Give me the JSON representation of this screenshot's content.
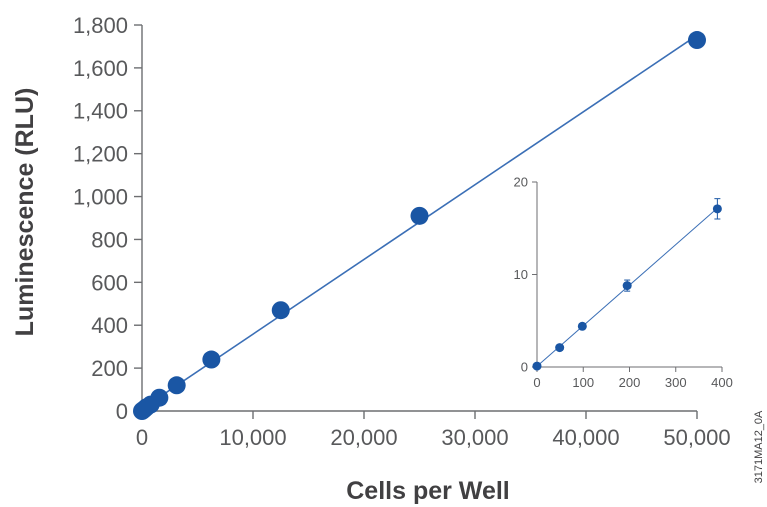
{
  "chart_data": [
    {
      "type": "scatter",
      "title": "",
      "xlabel": "Cells per Well",
      "ylabel": "Luminescence (RLU)",
      "xlim": [
        0,
        50000
      ],
      "ylim": [
        0,
        1800
      ],
      "x_ticks": [
        "0",
        "10,000",
        "20,000",
        "30,000",
        "40,000",
        "50,000"
      ],
      "y_ticks": [
        "0",
        "200",
        "400",
        "600",
        "800",
        "1,000",
        "1,200",
        "1,400",
        "1,600",
        "1,800"
      ],
      "trendline": "linear",
      "grid": false,
      "points": [
        {
          "x": 0,
          "y": 0
        },
        {
          "x": 98,
          "y": 4
        },
        {
          "x": 195,
          "y": 8
        },
        {
          "x": 390,
          "y": 17
        },
        {
          "x": 781,
          "y": 30
        },
        {
          "x": 1563,
          "y": 62
        },
        {
          "x": 3125,
          "y": 120
        },
        {
          "x": 6250,
          "y": 240
        },
        {
          "x": 12500,
          "y": 470
        },
        {
          "x": 25000,
          "y": 910
        },
        {
          "x": 50000,
          "y": 1730
        }
      ]
    },
    {
      "type": "scatter",
      "title": "",
      "xlabel": "",
      "ylabel": "",
      "xlim": [
        0,
        400
      ],
      "ylim": [
        0,
        20
      ],
      "x_ticks": [
        "0",
        "100",
        "200",
        "300",
        "400"
      ],
      "y_ticks": [
        "0",
        "10",
        "20"
      ],
      "trendline": "linear",
      "grid": false,
      "points": [
        {
          "x": 0,
          "y": 0.1,
          "err": 0
        },
        {
          "x": 49,
          "y": 2.1,
          "err": 0.2
        },
        {
          "x": 98,
          "y": 4.4,
          "err": 0.3
        },
        {
          "x": 195,
          "y": 8.8,
          "err": 0.6
        },
        {
          "x": 390,
          "y": 17.1,
          "err": 1.1
        }
      ]
    }
  ],
  "figure_code": "3171MA12_0A",
  "colors": {
    "marker": "#1a56a4",
    "line": "#3b6fb6",
    "axis": "#6d6e71"
  }
}
